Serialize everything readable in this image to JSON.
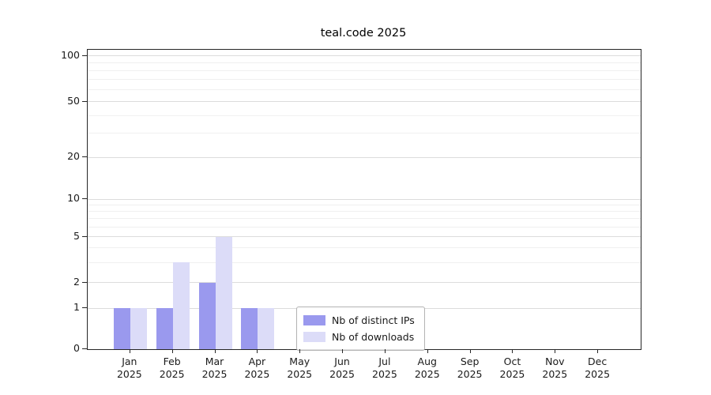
{
  "chart_data": {
    "type": "bar",
    "title": "teal.code 2025",
    "x": [
      "Jan",
      "Feb",
      "Mar",
      "Apr",
      "May",
      "Jun",
      "Jul",
      "Aug",
      "Sep",
      "Oct",
      "Nov",
      "Dec"
    ],
    "x_year": "2025",
    "series": [
      {
        "name": "Nb of distinct IPs",
        "color": "#9a99ee",
        "values": [
          1,
          1,
          2,
          1,
          0,
          0,
          0,
          0,
          0,
          0,
          0,
          0
        ]
      },
      {
        "name": "Nb of downloads",
        "color": "#dcdcf8",
        "values": [
          1,
          3,
          5,
          1,
          0,
          0,
          0,
          0,
          0,
          0,
          0,
          0
        ]
      }
    ],
    "y_ticks": [
      0,
      1,
      2,
      5,
      10,
      20,
      50,
      100
    ],
    "y_minor_gridlines": [
      3,
      4,
      6,
      7,
      8,
      9,
      30,
      40,
      60,
      70,
      80,
      90
    ],
    "ylim": [
      0,
      110
    ],
    "y_scale": "linear below 1, logarithmic above 1",
    "grid": true,
    "legend_position": "lower center",
    "colors": {
      "grid_major": "#dcdcdc",
      "grid_minor": "#f0f0f0",
      "spine": "#262626",
      "background": "#ffffff"
    }
  }
}
